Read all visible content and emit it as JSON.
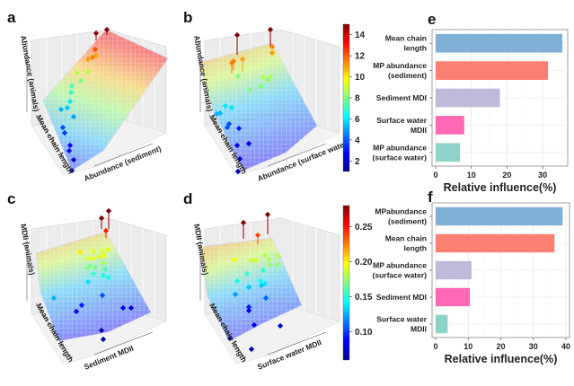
{
  "panels": {
    "a": {
      "letter": "a",
      "zlabel": "Abundance (animals)",
      "ylabel": "Mean chain length",
      "xlabel": "Abundance (sediment)"
    },
    "b": {
      "letter": "b",
      "zlabel": "Abundance (animals)",
      "ylabel": "Mean chain length",
      "xlabel": "Abundance (surface water)"
    },
    "c": {
      "letter": "c",
      "zlabel": "MDIi (animals)",
      "ylabel": "Mean chain length",
      "xlabel": "Sediment MDII"
    },
    "d": {
      "letter": "d",
      "zlabel": "MDII (animals)",
      "ylabel": "Mean chain length",
      "xlabel": "Surface water MDII"
    },
    "e": {
      "letter": "e"
    },
    "f": {
      "letter": "f"
    }
  },
  "chart_data": [
    {
      "id": "colorbar-top",
      "type": "heatmap",
      "title": "",
      "colormap": "jet",
      "range": [
        1,
        15
      ],
      "ticks": [
        "2",
        "4",
        "6",
        "8",
        "10",
        "12",
        "14"
      ],
      "tick_values": [
        2,
        4,
        6,
        8,
        10,
        12,
        14
      ]
    },
    {
      "id": "colorbar-bottom",
      "type": "heatmap",
      "title": "",
      "colormap": "jet",
      "range": [
        0.06,
        0.28
      ],
      "ticks": [
        "0.10",
        "0.15",
        "0.20",
        "0.25"
      ],
      "tick_values": [
        0.1,
        0.15,
        0.2,
        0.25
      ]
    },
    {
      "id": "panel-e",
      "type": "bar",
      "orientation": "horizontal",
      "title": "",
      "xlabel": "Relative influence(%)",
      "ylabel": "",
      "xlim": [
        0,
        36
      ],
      "xticks": [
        "0",
        "10",
        "20",
        "30"
      ],
      "xtick_values": [
        0,
        10,
        20,
        30
      ],
      "grid": true,
      "categories": [
        "Mean chain|length",
        "MP abundance|(sediment)",
        "Sediment MDI",
        "Surface water|MDII",
        "MP abundance|(surface water)"
      ],
      "values": [
        35.5,
        31.5,
        18.0,
        8.0,
        6.8
      ],
      "colors": [
        "#7fb0d5",
        "#fb8072",
        "#bebada",
        "#ff69b4",
        "#8dd3c7"
      ]
    },
    {
      "id": "panel-f",
      "type": "bar",
      "orientation": "horizontal",
      "title": "",
      "xlabel": "Relative influence(%)",
      "ylabel": "",
      "xlim": [
        0,
        40
      ],
      "xticks": [
        "0",
        "10",
        "20",
        "30",
        "40"
      ],
      "xtick_values": [
        0,
        10,
        20,
        30,
        40
      ],
      "grid": true,
      "categories": [
        "MPabundance|(sediment)",
        "Mean chain|length",
        "MP abundance|(surface water)",
        "Sediment MDI",
        "Surface water|MDII"
      ],
      "values": [
        39.0,
        36.5,
        11.0,
        10.5,
        3.7
      ],
      "colors": [
        "#7fb0d5",
        "#fb8072",
        "#bebada",
        "#ff69b4",
        "#8dd3c7"
      ]
    }
  ]
}
